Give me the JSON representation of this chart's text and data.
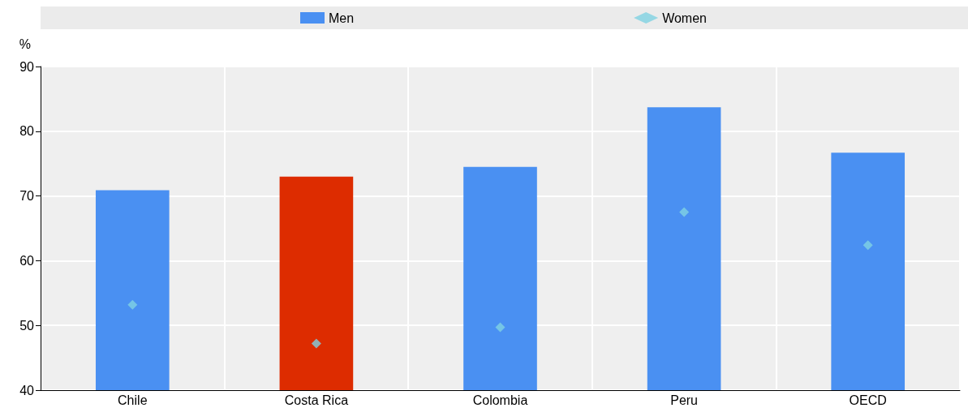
{
  "chart_data": {
    "type": "bar",
    "ylabel": "%",
    "categories": [
      "Chile",
      "Costa Rica",
      "Colombia",
      "Peru",
      "OECD"
    ],
    "series": [
      {
        "name": "Men",
        "color": "#4a90f2",
        "colors": [
          "#4a90f2",
          "#dd2c00",
          "#4a90f2",
          "#4a90f2",
          "#4a90f2"
        ],
        "values": [
          70.9,
          73.0,
          74.5,
          83.7,
          76.7
        ]
      },
      {
        "name": "Women",
        "type": "scatter",
        "marker": "diamond",
        "color": "#7fd2e2",
        "values": [
          53.2,
          47.2,
          49.7,
          67.5,
          62.4
        ]
      }
    ],
    "ylim": [
      40,
      90
    ],
    "yticks": [
      40,
      50,
      60,
      70,
      80,
      90
    ],
    "grid": true,
    "legend": "top"
  }
}
